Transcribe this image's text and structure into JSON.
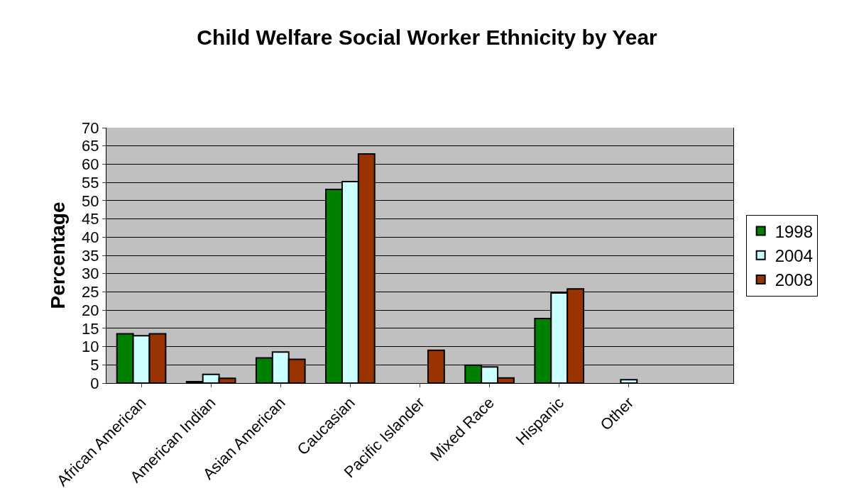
{
  "chart_data": {
    "type": "bar",
    "title": "Child Welfare Social Worker Ethnicity by Year",
    "ylabel": "Percentage",
    "categories": [
      "African American",
      "American Indian",
      "Asian American",
      "Caucasian",
      "Pacific Islander",
      "Mixed Race",
      "Hispanic",
      "Other",
      null
    ],
    "series": [
      {
        "name": "1998",
        "color": "#008000",
        "values": [
          13.5,
          0.4,
          6.9,
          53.1,
          null,
          4.9,
          17.7,
          null,
          null
        ]
      },
      {
        "name": "2004",
        "color": "#ccffff",
        "values": [
          13,
          2.4,
          8.5,
          55.2,
          null,
          4.4,
          24.7,
          0.9,
          null
        ]
      },
      {
        "name": "2008",
        "color": "#993300",
        "values": [
          13.5,
          1.3,
          6.5,
          62.8,
          9,
          1.4,
          25.8,
          null,
          null
        ]
      }
    ],
    "ylim": [
      0,
      70
    ],
    "yticks": [
      0,
      5,
      10,
      15,
      20,
      25,
      30,
      35,
      40,
      45,
      50,
      55,
      60,
      65,
      70
    ],
    "grid": "y",
    "legend": "right"
  }
}
